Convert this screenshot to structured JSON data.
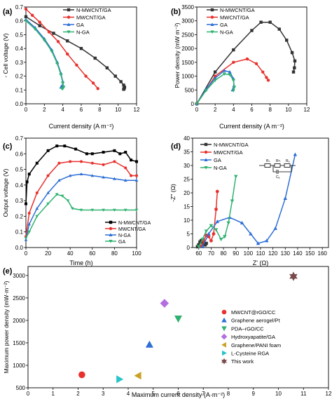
{
  "chart_data": [
    {
      "panel": "(a)",
      "type": "line",
      "xlabel": "Current density (A m⁻²)",
      "ylabel": "- Cell voltage (V)",
      "xlim": [
        0,
        12
      ],
      "ylim": [
        0.0,
        0.7
      ],
      "xticks": [
        0,
        2,
        4,
        6,
        8,
        10,
        12
      ],
      "yticks": [
        0.0,
        0.1,
        0.2,
        0.3,
        0.4,
        0.5,
        0.6,
        0.7
      ],
      "legend_position": "top-right",
      "series": [
        {
          "name": "N-MWCNT/GA",
          "color": "#333333",
          "marker": "square",
          "x": [
            0.0,
            1.5,
            3.0,
            4.5,
            6.0,
            7.5,
            8.8,
            9.7,
            10.3,
            10.6,
            10.7,
            10.65,
            10.6
          ],
          "y": [
            0.63,
            0.565,
            0.51,
            0.455,
            0.4,
            0.33,
            0.26,
            0.2,
            0.16,
            0.135,
            0.12,
            0.11,
            0.105
          ]
        },
        {
          "name": "MWCNT/GA",
          "color": "#e8312d",
          "marker": "circle",
          "x": [
            0.0,
            0.7,
            1.5,
            2.5,
            3.5,
            4.5,
            5.5,
            6.5,
            7.3,
            7.8
          ],
          "y": [
            0.685,
            0.64,
            0.59,
            0.52,
            0.45,
            0.36,
            0.28,
            0.2,
            0.15,
            0.11
          ]
        },
        {
          "name": "GA",
          "color": "#2f6fd6",
          "marker": "triangle-up",
          "x": [
            0.0,
            1.0,
            2.0,
            2.8,
            3.4,
            3.8,
            4.0,
            4.05,
            3.9,
            3.8
          ],
          "y": [
            0.61,
            0.55,
            0.47,
            0.39,
            0.3,
            0.22,
            0.16,
            0.13,
            0.13,
            0.12
          ]
        },
        {
          "name": "N-GA",
          "color": "#2fb270",
          "marker": "triangle-down",
          "x": [
            0.0,
            1.0,
            2.0,
            2.8,
            3.4,
            3.8,
            4.0,
            4.1,
            4.0,
            3.9
          ],
          "y": [
            0.6,
            0.54,
            0.46,
            0.38,
            0.29,
            0.21,
            0.15,
            0.12,
            0.11,
            0.11
          ]
        }
      ]
    },
    {
      "panel": "(b)",
      "type": "line",
      "xlabel": "Current density (A m⁻²)",
      "ylabel": "Power density (mW m⁻²)",
      "xlim": [
        0,
        12
      ],
      "ylim": [
        0,
        3500
      ],
      "xticks": [
        0,
        2,
        4,
        6,
        8,
        10,
        12
      ],
      "yticks": [
        0,
        500,
        1000,
        1500,
        2000,
        2500,
        3000,
        3500
      ],
      "legend_position": "top-left",
      "series": [
        {
          "name": "N-MWCNT/GA",
          "color": "#333333",
          "marker": "square",
          "x": [
            0.0,
            2.0,
            4.0,
            6.0,
            7.0,
            8.0,
            9.0,
            9.8,
            10.4,
            10.7,
            10.65,
            10.55
          ],
          "y": [
            0,
            1150,
            1950,
            2650,
            2950,
            2950,
            2700,
            2300,
            1850,
            1550,
            1300,
            1150
          ]
        },
        {
          "name": "MWCNT/GA",
          "color": "#e8312d",
          "marker": "circle",
          "x": [
            0.0,
            2.0,
            4.0,
            5.5,
            6.5,
            7.2,
            7.6,
            7.8
          ],
          "y": [
            0,
            1000,
            1500,
            1620,
            1450,
            1150,
            950,
            850
          ]
        },
        {
          "name": "GA",
          "color": "#2f6fd6",
          "marker": "triangle-up",
          "x": [
            0.0,
            1.0,
            2.0,
            3.0,
            3.6,
            4.0,
            4.05,
            3.9
          ],
          "y": [
            0,
            520,
            930,
            1200,
            1150,
            900,
            650,
            500
          ]
        },
        {
          "name": "N-GA",
          "color": "#2fb270",
          "marker": "triangle-down",
          "x": [
            0.0,
            1.0,
            2.0,
            3.0,
            3.6,
            4.0,
            4.1,
            4.0
          ],
          "y": [
            0,
            480,
            850,
            1080,
            1050,
            850,
            600,
            480
          ]
        }
      ]
    },
    {
      "panel": "(c)",
      "type": "line",
      "xlabel": "Time (h)",
      "ylabel": "Output voltage (V)",
      "xlim": [
        0,
        100
      ],
      "ylim": [
        0.0,
        0.7
      ],
      "xticks": [
        0,
        20,
        40,
        60,
        80,
        100
      ],
      "yticks": [
        0.0,
        0.1,
        0.2,
        0.3,
        0.4,
        0.5,
        0.6,
        0.7
      ],
      "legend_position": "bottom-center",
      "series": [
        {
          "name": "N-MWCNT/GA",
          "color": "#000000",
          "marker": "square",
          "x": [
            0,
            1,
            3,
            10,
            20,
            28,
            35,
            45,
            55,
            60,
            70,
            80,
            85,
            90,
            95,
            100
          ],
          "y": [
            0.28,
            0.42,
            0.47,
            0.54,
            0.62,
            0.65,
            0.65,
            0.63,
            0.6,
            0.6,
            0.61,
            0.62,
            0.6,
            0.61,
            0.56,
            0.55
          ]
        },
        {
          "name": "MWCNT/GA",
          "color": "#e8312d",
          "marker": "circle",
          "x": [
            0,
            3,
            10,
            20,
            30,
            40,
            50,
            60,
            70,
            80,
            90,
            95,
            100
          ],
          "y": [
            0.07,
            0.22,
            0.35,
            0.46,
            0.54,
            0.55,
            0.55,
            0.54,
            0.53,
            0.55,
            0.51,
            0.46,
            0.46
          ]
        },
        {
          "name": "N-GA",
          "color": "#2f6fd6",
          "marker": "triangle-up",
          "x": [
            0,
            3,
            10,
            20,
            30,
            40,
            50,
            60,
            70,
            80,
            90,
            100
          ],
          "y": [
            0.05,
            0.15,
            0.25,
            0.35,
            0.43,
            0.46,
            0.47,
            0.46,
            0.45,
            0.44,
            0.43,
            0.43
          ]
        },
        {
          "name": "GA",
          "color": "#2fb270",
          "marker": "triangle-down",
          "x": [
            0,
            3,
            10,
            20,
            28,
            33,
            38,
            42,
            50,
            60,
            70,
            80,
            90,
            100
          ],
          "y": [
            0.06,
            0.1,
            0.2,
            0.28,
            0.34,
            0.33,
            0.3,
            0.25,
            0.24,
            0.24,
            0.24,
            0.24,
            0.24,
            0.24
          ]
        }
      ]
    },
    {
      "panel": "(d)",
      "type": "line",
      "xlabel": "Z' (Ω)",
      "ylabel": "-Z'' (Ω)",
      "xlim": [
        55,
        165
      ],
      "ylim": [
        0,
        40
      ],
      "xticks": [
        60,
        70,
        80,
        90,
        100,
        110,
        120,
        130,
        140,
        150,
        160
      ],
      "yticks": [
        0,
        5,
        10,
        15,
        20,
        25,
        30,
        35,
        40
      ],
      "legend_position": "top-left",
      "inset_labels": [
        "Rₛ",
        "Rᶜₜ",
        "Rₑ",
        "Cₑ"
      ],
      "series": [
        {
          "name": "N-MWCNT/GA",
          "color": "#333333",
          "marker": "square",
          "x": [
            59,
            60,
            61,
            62,
            63,
            64,
            65,
            66
          ],
          "y": [
            0.3,
            1.0,
            2.0,
            2.5,
            2.0,
            1.2,
            1.0,
            1.5
          ]
        },
        {
          "name": "MWCNT/GA",
          "color": "#e8312d",
          "marker": "circle",
          "x": [
            62,
            64,
            66,
            68,
            70,
            72,
            74,
            75
          ],
          "y": [
            0.5,
            2.5,
            4.5,
            4.0,
            2.5,
            5.0,
            14.0,
            20.5
          ]
        },
        {
          "name": "GA",
          "color": "#2f6fd6",
          "marker": "triangle-up",
          "x": [
            63,
            68,
            75,
            85,
            95,
            102,
            108,
            115,
            122,
            130,
            138
          ],
          "y": [
            0.3,
            5.0,
            9.5,
            11.0,
            9.0,
            5.0,
            1.5,
            2.5,
            7.0,
            18.0,
            34.0
          ]
        },
        {
          "name": "N-GA",
          "color": "#2fb270",
          "marker": "triangle-down",
          "x": [
            60,
            63,
            66,
            70,
            74,
            78,
            81,
            84,
            87,
            90
          ],
          "y": [
            0.3,
            3.0,
            6.0,
            8.0,
            6.5,
            3.0,
            4.0,
            9.0,
            17.0,
            26.0
          ]
        }
      ]
    },
    {
      "panel": "(e)",
      "type": "scatter",
      "xlabel": "Maximum current density (A·m⁻²)",
      "ylabel": "Maximum power density (mW·m⁻²)",
      "xlim": [
        0,
        12
      ],
      "ylim": [
        500,
        3200
      ],
      "xticks": [
        0,
        1,
        2,
        3,
        4,
        5,
        6,
        7,
        8,
        9,
        10,
        11,
        12
      ],
      "yticks": [
        500,
        1000,
        1500,
        2000,
        2500,
        3000
      ],
      "legend_position": "right",
      "points": [
        {
          "name": "MWCNT@rGO/CC",
          "x": 2.15,
          "y": 790,
          "color": "#e8312d",
          "marker": "circle"
        },
        {
          "name": "Graphene aerogel/Pt",
          "x": 4.85,
          "y": 1460,
          "color": "#2f6fd6",
          "marker": "triangle-up"
        },
        {
          "name": "PDA–rGO/CC",
          "x": 6.0,
          "y": 2040,
          "color": "#2fb270",
          "marker": "triangle-down"
        },
        {
          "name": "Hydroxyapatite/GA",
          "x": 5.45,
          "y": 2380,
          "color": "#b46ee0",
          "marker": "diamond"
        },
        {
          "name": "Graphene/PANI foam",
          "x": 4.4,
          "y": 770,
          "color": "#c9a227",
          "marker": "triangle-left"
        },
        {
          "name": "L-Cysteine RGA",
          "x": 3.65,
          "y": 690,
          "color": "#27c4c9",
          "marker": "triangle-right"
        },
        {
          "name": "This work",
          "x": 10.6,
          "y": 2980,
          "color": "#7a4a4a",
          "marker": "star"
        }
      ]
    }
  ]
}
